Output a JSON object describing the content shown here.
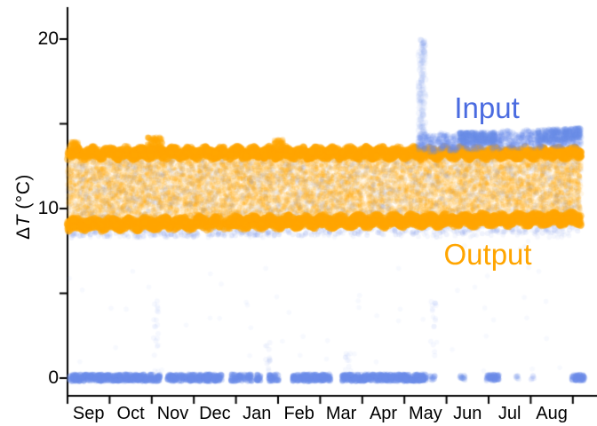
{
  "chart_data": {
    "type": "scatter",
    "title": "",
    "xlabel": "",
    "ylabel": {
      "delta": "Δ",
      "t": "T",
      "unit": " (°C)"
    },
    "x_categories": [
      "Sep",
      "Oct",
      "Nov",
      "Dec",
      "Jan",
      "Feb",
      "Mar",
      "Apr",
      "May",
      "Jun",
      "Jul",
      "Aug"
    ],
    "x_domain_months": [
      0,
      12.2
    ],
    "y_axis": {
      "ticks": [
        0,
        5,
        10,
        15,
        20
      ],
      "labeled_ticks": [
        {
          "value": 0,
          "label": "0"
        },
        {
          "value": 10,
          "label": "10"
        },
        {
          "value": 20,
          "label": "20"
        }
      ],
      "range": [
        0,
        20
      ]
    },
    "grid": false,
    "legend_position": "in-plot-text",
    "annotations": {
      "input": {
        "text": "Input",
        "color": "#4A6BE0",
        "month": 9.96,
        "value": 15.9
      },
      "output": {
        "text": "Output",
        "color": "#FFA500",
        "month": 9.98,
        "value": 7.3
      }
    },
    "axis_color": "#000000",
    "series": [
      {
        "name": "Output",
        "color": "#FFA500",
        "description": "heat-exchanger output delta-T, dense band 9-13.5 C all year",
        "bands": [
          {
            "id": "interior-wash",
            "layer": 1,
            "m": [
              0,
              12.2
            ],
            "y": [
              9.2,
              13.25
            ],
            "n": 8000,
            "r": 3.0,
            "a": 0.1
          },
          {
            "id": "interior-speckle",
            "layer": 1,
            "m": [
              0,
              12.2
            ],
            "y": [
              9.0,
              13.3
            ],
            "n": 2500,
            "r": 2.2,
            "a": 0.16
          },
          {
            "id": "top-edge",
            "layer": 3,
            "m": [
              0,
              12.2
            ],
            "y": [
              13.0,
              13.55
            ],
            "n": 2400,
            "r": 4.2,
            "a": 0.5,
            "wave": [
              0.12,
              0.38
            ]
          },
          {
            "id": "bottom-edge",
            "layer": 3,
            "m": [
              0,
              12.2
            ],
            "y": [
              8.75,
              9.35
            ],
            "n": 2400,
            "r": 4.2,
            "a": 0.5,
            "drift": 0.35,
            "wave": [
              0.12,
              0.42
            ]
          },
          {
            "id": "bump-sep",
            "layer": 3,
            "m": [
              0.05,
              0.25
            ],
            "y": [
              13.4,
              13.95
            ],
            "n": 40,
            "r": 3.4,
            "a": 0.3
          },
          {
            "id": "bump-nov",
            "layer": 3,
            "m": [
              1.9,
              2.25
            ],
            "y": [
              13.4,
              14.2
            ],
            "n": 80,
            "r": 3.4,
            "a": 0.35
          },
          {
            "id": "bump-feb",
            "layer": 3,
            "m": [
              4.9,
              5.12
            ],
            "y": [
              13.4,
              14.05
            ],
            "n": 50,
            "r": 3.4,
            "a": 0.3
          }
        ]
      },
      {
        "name": "Input",
        "color": "#6B8AE8",
        "description": "input delta-T: near 0 Sep-May, rises above output band May-Aug, spike to 20 in early May",
        "bands": [
          {
            "id": "mid-scatter",
            "layer": 2,
            "m": [
              0,
              12.2
            ],
            "y": [
              8.3,
              13.3
            ],
            "n": 2200,
            "r": 2.8,
            "a": 0.07
          },
          {
            "id": "under-edge",
            "layer": 2,
            "m": [
              0,
              12.2
            ],
            "y": [
              8.25,
              8.8
            ],
            "n": 380,
            "r": 3.0,
            "a": 0.11,
            "drift": 0.3
          },
          {
            "id": "top-band",
            "layer": 4,
            "m": [
              8.32,
              12.2
            ],
            "y": [
              13.35,
              14.35
            ],
            "n": 900,
            "r": 3.1,
            "a": 0.15,
            "drift": 0.35,
            "wave": [
              0.08,
              0.5
            ]
          },
          {
            "id": "top-cluster-jun",
            "layer": 4,
            "m": [
              9.3,
              10.15
            ],
            "y": [
              13.85,
              14.5
            ],
            "n": 240,
            "r": 3.2,
            "a": 0.2
          },
          {
            "id": "top-cluster-aug",
            "layer": 4,
            "m": [
              11.15,
              12.2
            ],
            "y": [
              13.95,
              14.65
            ],
            "n": 240,
            "r": 3.2,
            "a": 0.2,
            "drift": 0.15
          },
          {
            "id": "may-spike",
            "layer": 4,
            "m": [
              8.34,
              8.5
            ],
            "y": [
              13.5,
              20.0
            ],
            "n": 110,
            "r": 3.6,
            "a": 0.085
          },
          {
            "id": "may-spike-tip",
            "layer": 4,
            "m": [
              8.38,
              8.47
            ],
            "y": [
              19.2,
              20.0
            ],
            "n": 8,
            "r": 3.4,
            "a": 0.12
          },
          {
            "id": "zero-dense-a",
            "layer": 4,
            "m": [
              0.05,
              6.25
            ],
            "y": [
              -0.18,
              0.22
            ],
            "n": 1450,
            "r": 3.3,
            "a": 0.3,
            "gaps": [
              [
                2.2,
                2.37
              ],
              [
                3.67,
                3.88
              ],
              [
                4.37,
                4.48
              ],
              [
                4.6,
                4.78
              ],
              [
                5.02,
                5.35
              ]
            ]
          },
          {
            "id": "zero-dense-b",
            "layer": 4,
            "m": [
              6.52,
              8.52
            ],
            "y": [
              -0.18,
              0.22
            ],
            "n": 480,
            "r": 3.3,
            "a": 0.3
          },
          {
            "id": "zero-blob-may",
            "layer": 4,
            "m": [
              8.6,
              8.72
            ],
            "y": [
              -0.12,
              0.16
            ],
            "n": 14,
            "r": 3.3,
            "a": 0.18
          },
          {
            "id": "zero-blob-jun",
            "layer": 4,
            "m": [
              9.32,
              9.44
            ],
            "y": [
              -0.12,
              0.16
            ],
            "n": 12,
            "r": 3.3,
            "a": 0.2
          },
          {
            "id": "zero-blob-jul",
            "layer": 4,
            "m": [
              9.95,
              10.25
            ],
            "y": [
              -0.15,
              0.2
            ],
            "n": 70,
            "r": 3.3,
            "a": 0.26
          },
          {
            "id": "zero-dot-jul2",
            "layer": 4,
            "m": [
              10.63,
              10.72
            ],
            "y": [
              -0.1,
              0.14
            ],
            "n": 7,
            "r": 3.2,
            "a": 0.12
          },
          {
            "id": "zero-dot-aug1",
            "layer": 4,
            "m": [
              11.0,
              11.1
            ],
            "y": [
              -0.1,
              0.14
            ],
            "n": 6,
            "r": 3.2,
            "a": 0.1
          },
          {
            "id": "zero-blob-aug",
            "layer": 4,
            "m": [
              11.97,
              12.28
            ],
            "y": [
              -0.15,
              0.2
            ],
            "n": 70,
            "r": 3.3,
            "a": 0.26
          },
          {
            "id": "low-scatter",
            "layer": 4,
            "m": [
              0,
              12.2
            ],
            "y": [
              0.4,
              8.2
            ],
            "n": 60,
            "r": 2.8,
            "a": 0.05
          },
          {
            "id": "wisp-oct",
            "layer": 4,
            "m": [
              2.04,
              2.16
            ],
            "y": [
              0.3,
              4.6
            ],
            "n": 20,
            "r": 3.0,
            "a": 0.06
          },
          {
            "id": "wisp-jan",
            "layer": 4,
            "m": [
              4.7,
              4.82
            ],
            "y": [
              0.2,
              2.2
            ],
            "n": 12,
            "r": 3.0,
            "a": 0.07
          },
          {
            "id": "wisp-mar",
            "layer": 4,
            "m": [
              6.6,
              6.72
            ],
            "y": [
              0.2,
              1.6
            ],
            "n": 10,
            "r": 3.0,
            "a": 0.06
          },
          {
            "id": "wisp-may",
            "layer": 4,
            "m": [
              8.6,
              8.75
            ],
            "y": [
              0.3,
              4.8
            ],
            "n": 16,
            "r": 3.0,
            "a": 0.06
          }
        ]
      }
    ]
  }
}
